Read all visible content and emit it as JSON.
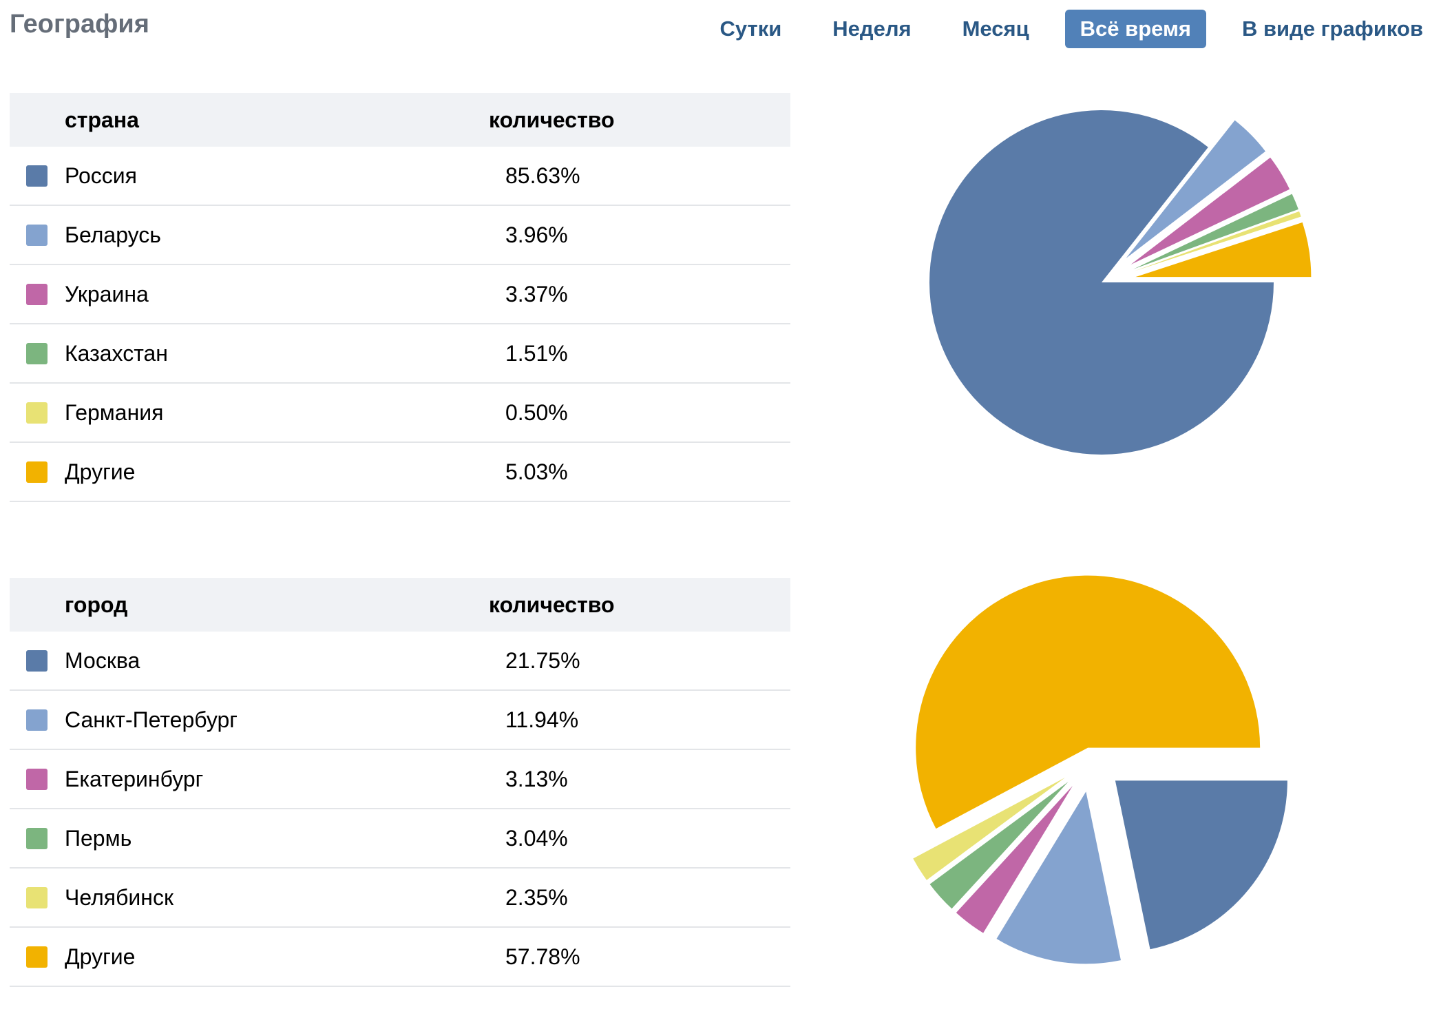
{
  "header": {
    "title": "География",
    "tabs": [
      {
        "label": "Сутки",
        "active": false
      },
      {
        "label": "Неделя",
        "active": false
      },
      {
        "label": "Месяц",
        "active": false
      },
      {
        "label": "Всё время",
        "active": true
      },
      {
        "label": "В виде графиков",
        "active": false
      }
    ]
  },
  "colors": [
    "#5a7ba8",
    "#84a3cf",
    "#c067a7",
    "#7cb57f",
    "#e8e274",
    "#f2b200"
  ],
  "countries": {
    "col1": "страна",
    "col2": "количество",
    "rows": [
      {
        "name": "Россия",
        "value": "85.63%"
      },
      {
        "name": "Беларусь",
        "value": "3.96%"
      },
      {
        "name": "Украина",
        "value": "3.37%"
      },
      {
        "name": "Казахстан",
        "value": "1.51%"
      },
      {
        "name": "Германия",
        "value": "0.50%"
      },
      {
        "name": "Другие",
        "value": "5.03%"
      }
    ]
  },
  "cities": {
    "col1": "город",
    "col2": "количество",
    "rows": [
      {
        "name": "Москва",
        "value": "21.75%"
      },
      {
        "name": "Санкт-Петербург",
        "value": "11.94%"
      },
      {
        "name": "Екатеринбург",
        "value": "3.13%"
      },
      {
        "name": "Пермь",
        "value": "3.04%"
      },
      {
        "name": "Челябинск",
        "value": "2.35%"
      },
      {
        "name": "Другие",
        "value": "57.78%"
      }
    ]
  },
  "chart_data": [
    {
      "type": "pie",
      "categories": [
        "Россия",
        "Беларусь",
        "Украина",
        "Казахстан",
        "Германия",
        "Другие"
      ],
      "values": [
        85.63,
        3.96,
        3.37,
        1.51,
        0.5,
        5.03
      ]
    },
    {
      "type": "pie",
      "categories": [
        "Москва",
        "Санкт-Петербург",
        "Екатеринбург",
        "Пермь",
        "Челябинск",
        "Другие"
      ],
      "values": [
        21.75,
        11.94,
        3.13,
        3.04,
        2.35,
        57.78
      ]
    }
  ]
}
